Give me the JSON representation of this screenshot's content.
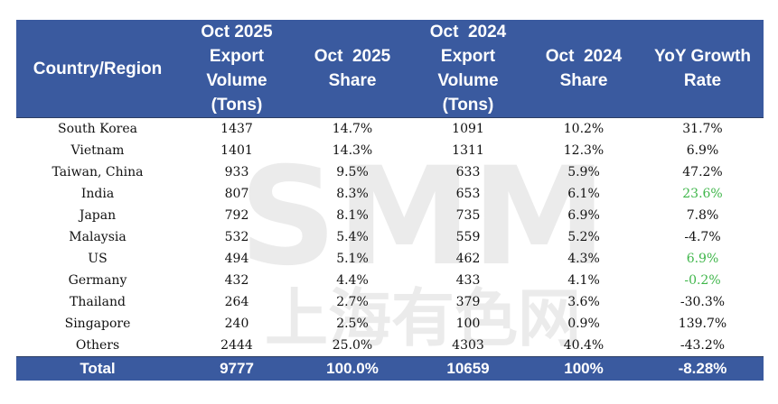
{
  "headers": {
    "country": "Country/Region",
    "oct2025_volume": [
      "Oct 2025",
      "Export",
      "Volume",
      "(Tons)"
    ],
    "oct2025_share": [
      "Oct  2025",
      "Share"
    ],
    "oct2024_volume": [
      "Oct  2024",
      "Export",
      "Volume",
      "(Tons)"
    ],
    "oct2024_share": [
      "Oct  2024",
      "Share"
    ],
    "yoy": [
      "YoY Growth",
      "Rate"
    ]
  },
  "rows": [
    {
      "country": "South Korea",
      "v2025": "1437",
      "s2025": "14.7%",
      "v2024": "1091",
      "s2024": "10.2%",
      "yoy": "31.7%",
      "yoy_green": false
    },
    {
      "country": "Vietnam",
      "v2025": "1401",
      "s2025": "14.3%",
      "v2024": "1311",
      "s2024": "12.3%",
      "yoy": "6.9%",
      "yoy_green": false
    },
    {
      "country": "Taiwan, China",
      "v2025": "933",
      "s2025": "9.5%",
      "v2024": "633",
      "s2024": "5.9%",
      "yoy": "47.2%",
      "yoy_green": false
    },
    {
      "country": "India",
      "v2025": "807",
      "s2025": "8.3%",
      "v2024": "653",
      "s2024": "6.1%",
      "yoy": "23.6%",
      "yoy_green": true
    },
    {
      "country": "Japan",
      "v2025": "792",
      "s2025": "8.1%",
      "v2024": "735",
      "s2024": "6.9%",
      "yoy": "7.8%",
      "yoy_green": false
    },
    {
      "country": "Malaysia",
      "v2025": "532",
      "s2025": "5.4%",
      "v2024": "559",
      "s2024": "5.2%",
      "yoy": "-4.7%",
      "yoy_green": false
    },
    {
      "country": "US",
      "v2025": "494",
      "s2025": "5.1%",
      "v2024": "462",
      "s2024": "4.3%",
      "yoy": "6.9%",
      "yoy_green": true
    },
    {
      "country": "Germany",
      "v2025": "432",
      "s2025": "4.4%",
      "v2024": "433",
      "s2024": "4.1%",
      "yoy": "-0.2%",
      "yoy_green": true
    },
    {
      "country": "Thailand",
      "v2025": "264",
      "s2025": "2.7%",
      "v2024": "379",
      "s2024": "3.6%",
      "yoy": "-30.3%",
      "yoy_green": false
    },
    {
      "country": "Singapore",
      "v2025": "240",
      "s2025": "2.5%",
      "v2024": "100",
      "s2024": "0.9%",
      "yoy": "139.7%",
      "yoy_green": false
    },
    {
      "country": "Others",
      "v2025": "2444",
      "s2025": "25.0%",
      "v2024": "4303",
      "s2024": "40.4%",
      "yoy": "-43.2%",
      "yoy_green": false
    }
  ],
  "total": {
    "label": "Total",
    "v2025": "9777",
    "s2025": "100.0%",
    "v2024": "10659",
    "s2024": "100%",
    "yoy": "-8.28%"
  },
  "watermark": {
    "latin": "SMM",
    "cjk": "上海有色网"
  },
  "colors": {
    "header_bg": "#3a5a9f",
    "header_text": "#ffffff",
    "green_text": "#3fb64a"
  }
}
